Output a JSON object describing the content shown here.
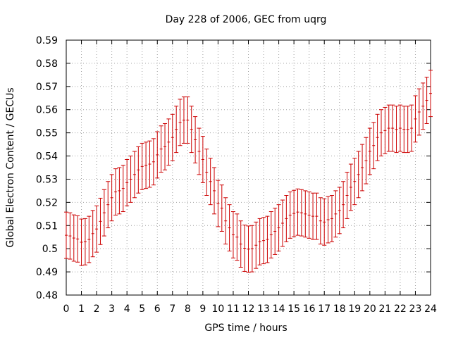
{
  "chart_data": {
    "type": "line",
    "title": "Day 228 of 2006, GEC from uqrg",
    "xlabel": "GPS time / hours",
    "ylabel": "Global Electron Content / GECUs",
    "xlim": [
      0,
      24
    ],
    "ylim": [
      0.48,
      0.59
    ],
    "x_ticks": [
      "0",
      "1",
      "2",
      "3",
      "4",
      "5",
      "6",
      "7",
      "8",
      "9",
      "10",
      "11",
      "12",
      "13",
      "14",
      "15",
      "16",
      "17",
      "18",
      "19",
      "20",
      "21",
      "22",
      "23",
      "24"
    ],
    "y_ticks": [
      "0.48",
      "0.49",
      "0.5",
      "0.51",
      "0.52",
      "0.53",
      "0.54",
      "0.55",
      "0.56",
      "0.57",
      "0.58",
      "0.59"
    ],
    "grid": true,
    "legend": "none",
    "color": "#cc0000",
    "error_bar": 0.01,
    "series": [
      {
        "x": [
          0,
          0.25,
          0.5,
          0.75,
          1,
          1.25,
          1.5,
          1.75,
          2,
          2.25,
          2.5,
          2.75,
          3,
          3.25,
          3.5,
          3.75,
          4,
          4.25,
          4.5,
          4.75,
          5,
          5.25,
          5.5,
          5.75,
          6,
          6.25,
          6.5,
          6.75,
          7,
          7.25,
          7.5,
          7.75,
          8,
          8.25,
          8.5,
          8.75,
          9,
          9.25,
          9.5,
          9.75,
          10,
          10.25,
          10.5,
          10.75,
          11,
          11.25,
          11.5,
          11.75,
          12,
          12.25,
          12.5,
          12.75,
          13,
          13.25,
          13.5,
          13.75,
          14,
          14.25,
          14.5,
          14.75,
          15,
          15.25,
          15.5,
          15.75,
          16,
          16.25,
          16.5,
          16.75,
          17,
          17.25,
          17.5,
          17.75,
          18,
          18.25,
          18.5,
          18.75,
          19,
          19.25,
          19.5,
          19.75,
          20,
          20.25,
          20.5,
          20.75,
          21,
          21.25,
          21.5,
          21.75,
          22,
          22.25,
          22.5,
          22.75,
          23,
          23.25,
          23.5,
          23.75,
          24
        ],
        "y": [
          0.5058,
          0.5055,
          0.5046,
          0.5042,
          0.5028,
          0.503,
          0.504,
          0.5065,
          0.5085,
          0.5118,
          0.5155,
          0.519,
          0.522,
          0.5245,
          0.525,
          0.526,
          0.5285,
          0.53,
          0.532,
          0.534,
          0.5355,
          0.536,
          0.5365,
          0.5375,
          0.5405,
          0.543,
          0.544,
          0.546,
          0.548,
          0.5515,
          0.5545,
          0.5555,
          0.5555,
          0.5515,
          0.547,
          0.542,
          0.5385,
          0.533,
          0.529,
          0.525,
          0.5195,
          0.5175,
          0.512,
          0.509,
          0.506,
          0.505,
          0.502,
          0.5002,
          0.4998,
          0.5,
          0.5015,
          0.503,
          0.5035,
          0.504,
          0.506,
          0.5075,
          0.509,
          0.511,
          0.513,
          0.5145,
          0.5152,
          0.5158,
          0.5155,
          0.515,
          0.5145,
          0.514,
          0.514,
          0.512,
          0.5115,
          0.5125,
          0.513,
          0.515,
          0.5165,
          0.519,
          0.523,
          0.5265,
          0.529,
          0.532,
          0.535,
          0.538,
          0.542,
          0.5445,
          0.548,
          0.55,
          0.551,
          0.552,
          0.552,
          0.5515,
          0.552,
          0.5515,
          0.5515,
          0.552,
          0.556,
          0.559,
          0.5615,
          0.564,
          0.567
        ]
      }
    ]
  }
}
